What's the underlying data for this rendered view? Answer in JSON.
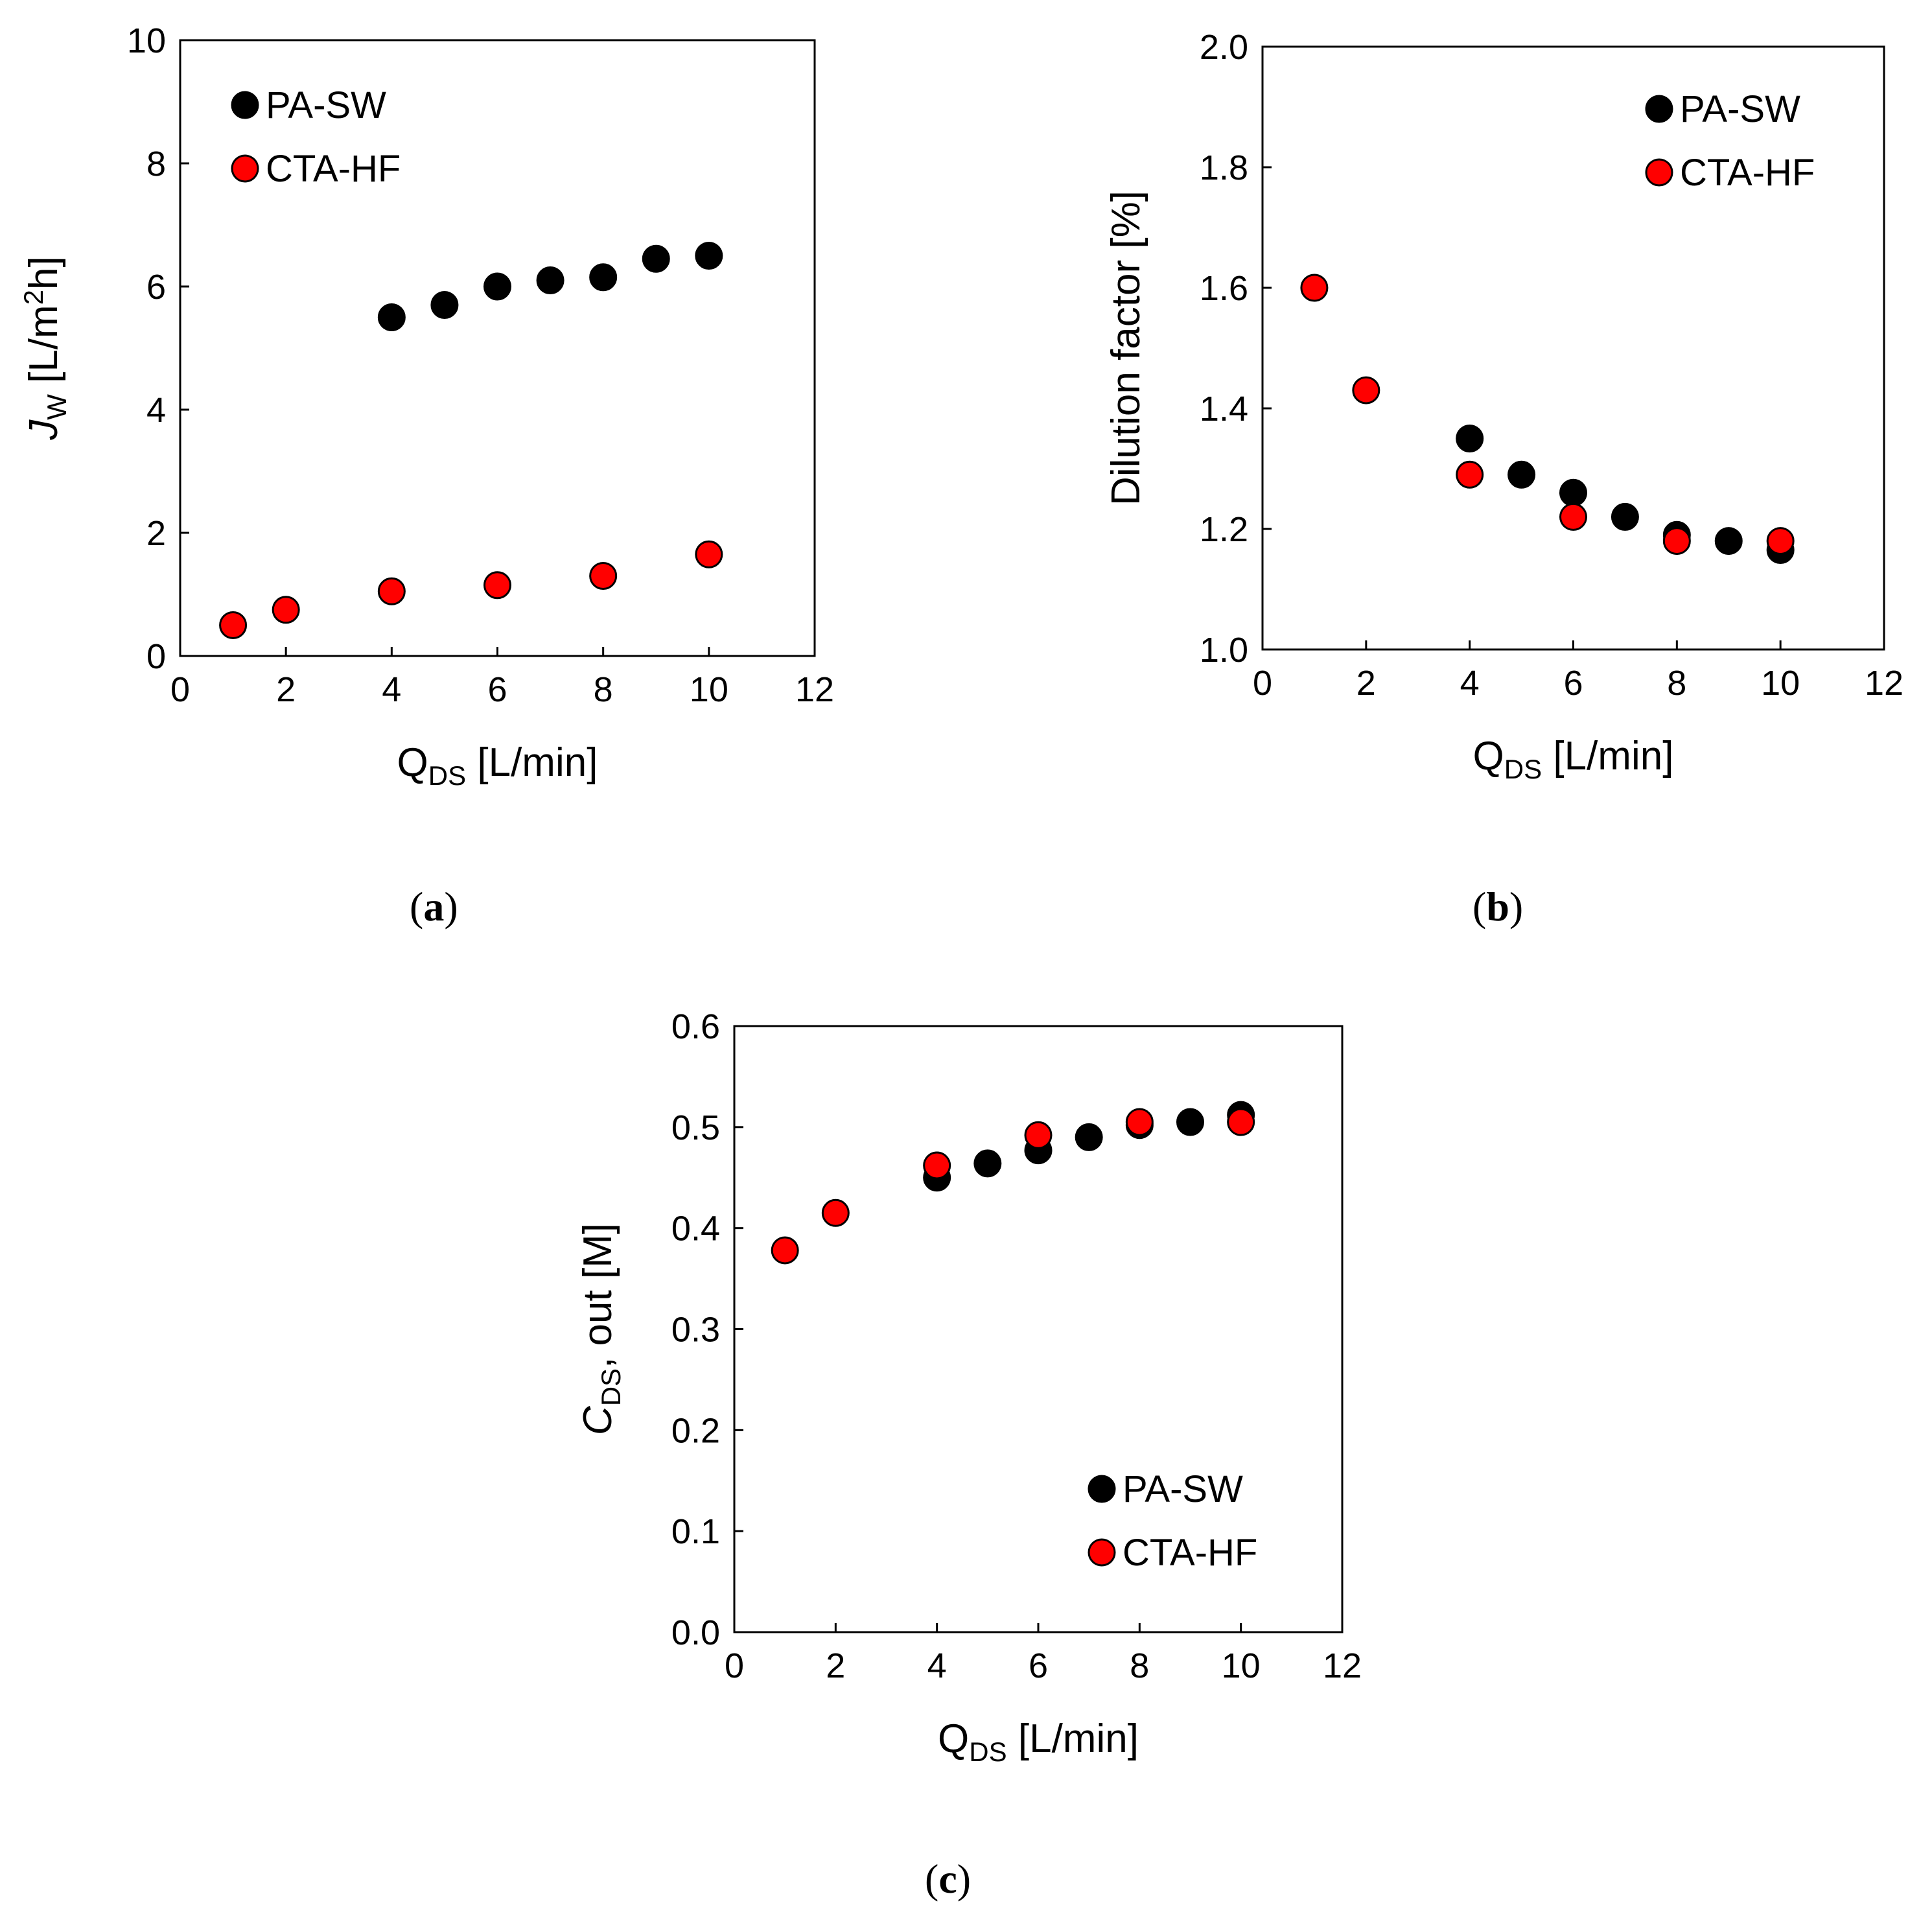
{
  "figure": {
    "colors": {
      "pa_sw": "#000000",
      "cta_hf": "#ff0000",
      "marker_edge": "#000000",
      "axis": "#000000"
    },
    "legend_labels": [
      "PA-SW",
      "CTA-HF"
    ]
  },
  "chart_data": [
    {
      "panel_id": "a",
      "panel_label": "a",
      "type": "scatter",
      "title": "",
      "xlabel": {
        "main": "Q",
        "sub": "DS",
        "rest": " [L/min]"
      },
      "ylabel": {
        "main": "J",
        "sub": "W",
        "rest_before_sup": " [L/m",
        "sup": "2",
        "rest_after_sup": "h]"
      },
      "xlim": [
        0,
        12
      ],
      "ylim": [
        0,
        10
      ],
      "xticks": [
        0,
        2,
        4,
        6,
        8,
        10,
        12
      ],
      "yticks": [
        0,
        2,
        4,
        6,
        8,
        10
      ],
      "ytick_decimals": 0,
      "grid": false,
      "legend_position": "top-left",
      "series": [
        {
          "name": "PA-SW",
          "color": "#000000",
          "x": [
            4,
            5,
            6,
            7,
            8,
            9,
            10
          ],
          "y": [
            5.5,
            5.7,
            6.0,
            6.1,
            6.15,
            6.45,
            6.5
          ]
        },
        {
          "name": "CTA-HF",
          "color": "#ff0000",
          "x": [
            1,
            2,
            4,
            6,
            8,
            10
          ],
          "y": [
            0.5,
            0.75,
            1.05,
            1.15,
            1.3,
            1.65
          ]
        }
      ]
    },
    {
      "panel_id": "b",
      "panel_label": "b",
      "type": "scatter",
      "title": "",
      "xlabel": {
        "main": "Q",
        "sub": "DS",
        "rest": " [L/min]"
      },
      "ylabel": {
        "plain": "Dilution factor [%]"
      },
      "xlim": [
        0,
        12
      ],
      "ylim": [
        1.0,
        2.0
      ],
      "xticks": [
        0,
        2,
        4,
        6,
        8,
        10,
        12
      ],
      "yticks": [
        1.0,
        1.2,
        1.4,
        1.6,
        1.8,
        2.0
      ],
      "ytick_decimals": 1,
      "grid": false,
      "legend_position": "top-right",
      "series": [
        {
          "name": "PA-SW",
          "color": "#000000",
          "x": [
            4,
            5,
            6,
            7,
            8,
            9,
            10
          ],
          "y": [
            1.35,
            1.29,
            1.26,
            1.22,
            1.19,
            1.18,
            1.165
          ]
        },
        {
          "name": "CTA-HF",
          "color": "#ff0000",
          "x": [
            1,
            2,
            4,
            6,
            8,
            10
          ],
          "y": [
            1.6,
            1.43,
            1.29,
            1.22,
            1.18,
            1.18
          ]
        }
      ]
    },
    {
      "panel_id": "c",
      "panel_label": "c",
      "type": "scatter",
      "title": "",
      "xlabel": {
        "main": "Q",
        "sub": "DS",
        "rest": " [L/min]"
      },
      "ylabel": {
        "main": "C",
        "sub": "DS",
        "rest": ", out [M]"
      },
      "xlim": [
        0,
        12
      ],
      "ylim": [
        0.0,
        0.6
      ],
      "xticks": [
        0,
        2,
        4,
        6,
        8,
        10,
        12
      ],
      "yticks": [
        0.0,
        0.1,
        0.2,
        0.3,
        0.4,
        0.5,
        0.6
      ],
      "ytick_decimals": 1,
      "grid": false,
      "legend_position": "bottom-right",
      "series": [
        {
          "name": "PA-SW",
          "color": "#000000",
          "x": [
            4,
            5,
            6,
            7,
            8,
            9,
            10
          ],
          "y": [
            0.45,
            0.464,
            0.477,
            0.49,
            0.502,
            0.505,
            0.512
          ]
        },
        {
          "name": "CTA-HF",
          "color": "#ff0000",
          "x": [
            1,
            2,
            4,
            6,
            8,
            10
          ],
          "y": [
            0.378,
            0.415,
            0.462,
            0.492,
            0.505,
            0.505
          ]
        }
      ]
    }
  ]
}
